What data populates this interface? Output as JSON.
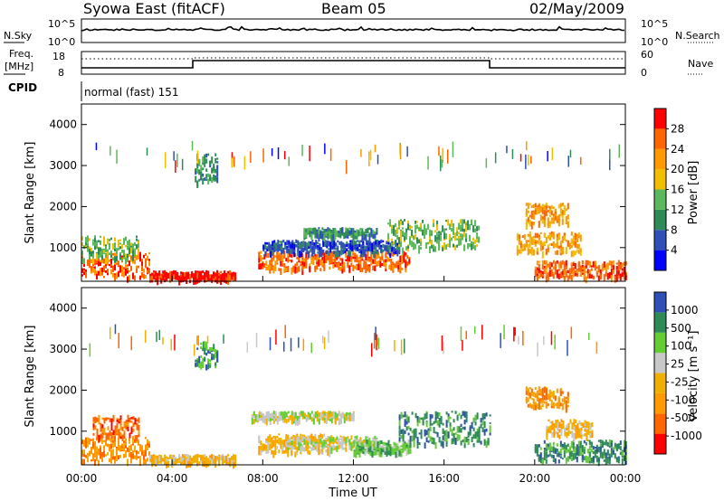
{
  "header": {
    "station": "Syowa East (fitACF)",
    "beam": "Beam 05",
    "date": "02/May/2009"
  },
  "top_panel": {
    "left_label_top": "N.Sky",
    "left_ticks": [
      "10^5",
      "10^0"
    ],
    "right_ticks": [
      "10^5",
      "10^0"
    ],
    "right_label": "N.Search"
  },
  "freq_panel": {
    "left_label_line1": "Freq.",
    "left_label_line2": "[MHz]",
    "left_ticks": [
      "18",
      "8"
    ],
    "right_ticks": [
      "60",
      "0"
    ],
    "right_label": "Nave"
  },
  "cpid_panel": {
    "label": "CPID",
    "value": "normal (fast) 151"
  },
  "colors": {
    "power_scale": [
      "#0000ff",
      "#2e4fb5",
      "#2e8b57",
      "#5cb85c",
      "#f0c000",
      "#ff9900",
      "#ff6600",
      "#ff0000"
    ],
    "velocity_scale": [
      "#ff0000",
      "#ff6600",
      "#ff9900",
      "#f0b000",
      "#c8c8c8",
      "#66cc33",
      "#2e8b57",
      "#2e4fb5"
    ]
  },
  "chart_data": [
    {
      "type": "heatmap",
      "name": "power",
      "ylabel": "Slant Range [km]",
      "ylim": [
        180,
        4500
      ],
      "y_ticks": [
        "4000",
        "3000",
        "2000",
        "1000"
      ],
      "colorbar_label": "Power [dB]",
      "colorbar_ticks": [
        "28",
        "24",
        "20",
        "16",
        "12",
        "8",
        "4"
      ],
      "xlim_hours": [
        0,
        24
      ],
      "bands": [
        {
          "t0": 0.0,
          "t1": 3.0,
          "r0": 300,
          "r1": 900,
          "level": 6
        },
        {
          "t0": 0.0,
          "t1": 2.5,
          "r0": 700,
          "r1": 1300,
          "level": 3
        },
        {
          "t0": 3.0,
          "t1": 6.8,
          "r0": 250,
          "r1": 450,
          "level": 7
        },
        {
          "t0": 5.0,
          "t1": 6.0,
          "r0": 2600,
          "r1": 3300,
          "level": 2
        },
        {
          "t0": 7.8,
          "t1": 14.5,
          "r0": 500,
          "r1": 950,
          "level": 6
        },
        {
          "t0": 8.0,
          "t1": 14.0,
          "r0": 900,
          "r1": 1200,
          "level": 1
        },
        {
          "t0": 9.8,
          "t1": 13.0,
          "r0": 1300,
          "r1": 1500,
          "level": 2
        },
        {
          "t0": 13.5,
          "t1": 17.5,
          "r0": 1000,
          "r1": 1700,
          "level": 3
        },
        {
          "t0": 19.6,
          "t1": 21.5,
          "r0": 1600,
          "r1": 2100,
          "level": 5
        },
        {
          "t0": 20.0,
          "t1": 24.0,
          "r0": 300,
          "r1": 700,
          "level": 6
        },
        {
          "t0": 19.2,
          "t1": 22.0,
          "r0": 900,
          "r1": 1400,
          "level": 5
        }
      ]
    },
    {
      "type": "heatmap",
      "name": "velocity",
      "ylabel": "Slant Range [km]",
      "ylim": [
        180,
        4500
      ],
      "y_ticks": [
        "4000",
        "3000",
        "2000",
        "1000"
      ],
      "xlabel": "Time UT",
      "x_ticks": [
        "00:00",
        "04:00",
        "08:00",
        "12:00",
        "16:00",
        "20:00",
        "00:00"
      ],
      "colorbar_label": "Velocity [m s⁻¹]",
      "colorbar_ticks": [
        "1000",
        "500",
        "100",
        "25",
        "-25",
        "-100",
        "-500",
        "-1000"
      ],
      "xlim_hours": [
        0,
        24
      ],
      "bands": [
        {
          "t0": 0.0,
          "t1": 3.0,
          "r0": 300,
          "r1": 900,
          "level": 2
        },
        {
          "t0": 0.5,
          "t1": 2.5,
          "r0": 900,
          "r1": 1400,
          "level": 1
        },
        {
          "t0": 3.0,
          "t1": 6.8,
          "r0": 250,
          "r1": 450,
          "level": 3
        },
        {
          "t0": 5.0,
          "t1": 6.0,
          "r0": 2600,
          "r1": 3200,
          "level": 6
        },
        {
          "t0": 7.8,
          "t1": 11.0,
          "r0": 500,
          "r1": 950,
          "level": 3
        },
        {
          "t0": 9.0,
          "t1": 13.0,
          "r0": 600,
          "r1": 900,
          "level": 4
        },
        {
          "t0": 12.0,
          "t1": 14.5,
          "r0": 500,
          "r1": 800,
          "level": 5
        },
        {
          "t0": 7.5,
          "t1": 12.0,
          "r0": 1300,
          "r1": 1500,
          "level": 4
        },
        {
          "t0": 14.0,
          "t1": 18.0,
          "r0": 700,
          "r1": 1500,
          "level": 6
        },
        {
          "t0": 19.6,
          "t1": 21.5,
          "r0": 1600,
          "r1": 2100,
          "level": 2
        },
        {
          "t0": 20.0,
          "t1": 24.0,
          "r0": 300,
          "r1": 800,
          "level": 6
        },
        {
          "t0": 20.5,
          "t1": 22.5,
          "r0": 900,
          "r1": 1300,
          "level": 3
        }
      ]
    }
  ]
}
